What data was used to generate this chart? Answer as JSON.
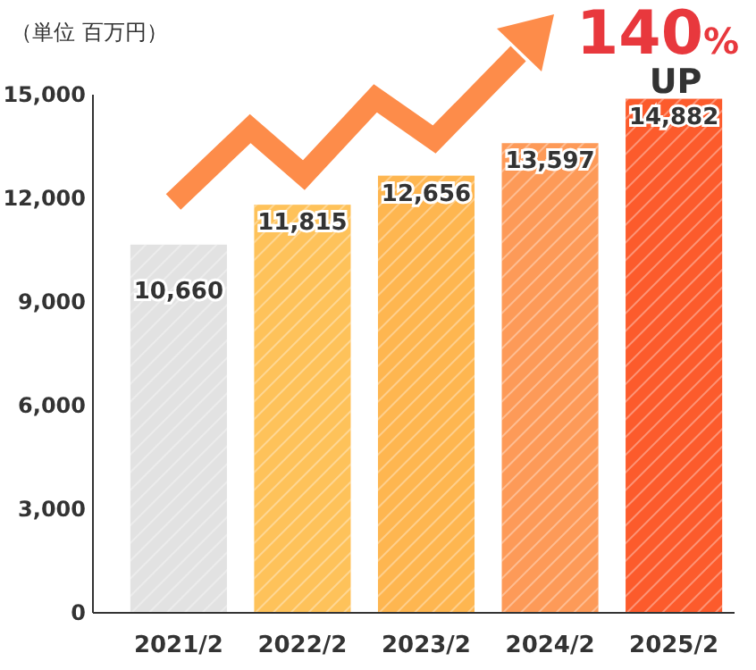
{
  "chart_data": {
    "type": "bar",
    "ylabel": "（単位 百万円）",
    "categories": [
      "2021/2",
      "2022/2",
      "2023/2",
      "2024/2",
      "2025/2"
    ],
    "values": [
      10660,
      11815,
      12656,
      13597,
      14882
    ],
    "colors": [
      "#e2e2e2",
      "#fec25a",
      "#feb650",
      "#fd9a58",
      "#fc5b2c"
    ],
    "ylim": [
      0,
      15000
    ],
    "yticks": [
      {
        "value": 0,
        "label": "0"
      },
      {
        "value": 3000,
        "label": "3,000"
      },
      {
        "value": 6000,
        "label": "6,000"
      },
      {
        "value": 9000,
        "label": "9,000"
      },
      {
        "value": 12000,
        "label": "12,000"
      },
      {
        "value": 15000,
        "label": "15,000"
      }
    ],
    "value_labels": [
      "10,660",
      "11,815",
      "12,656",
      "13,597",
      "14,882"
    ],
    "annotations": [
      "140%",
      "UP"
    ]
  }
}
